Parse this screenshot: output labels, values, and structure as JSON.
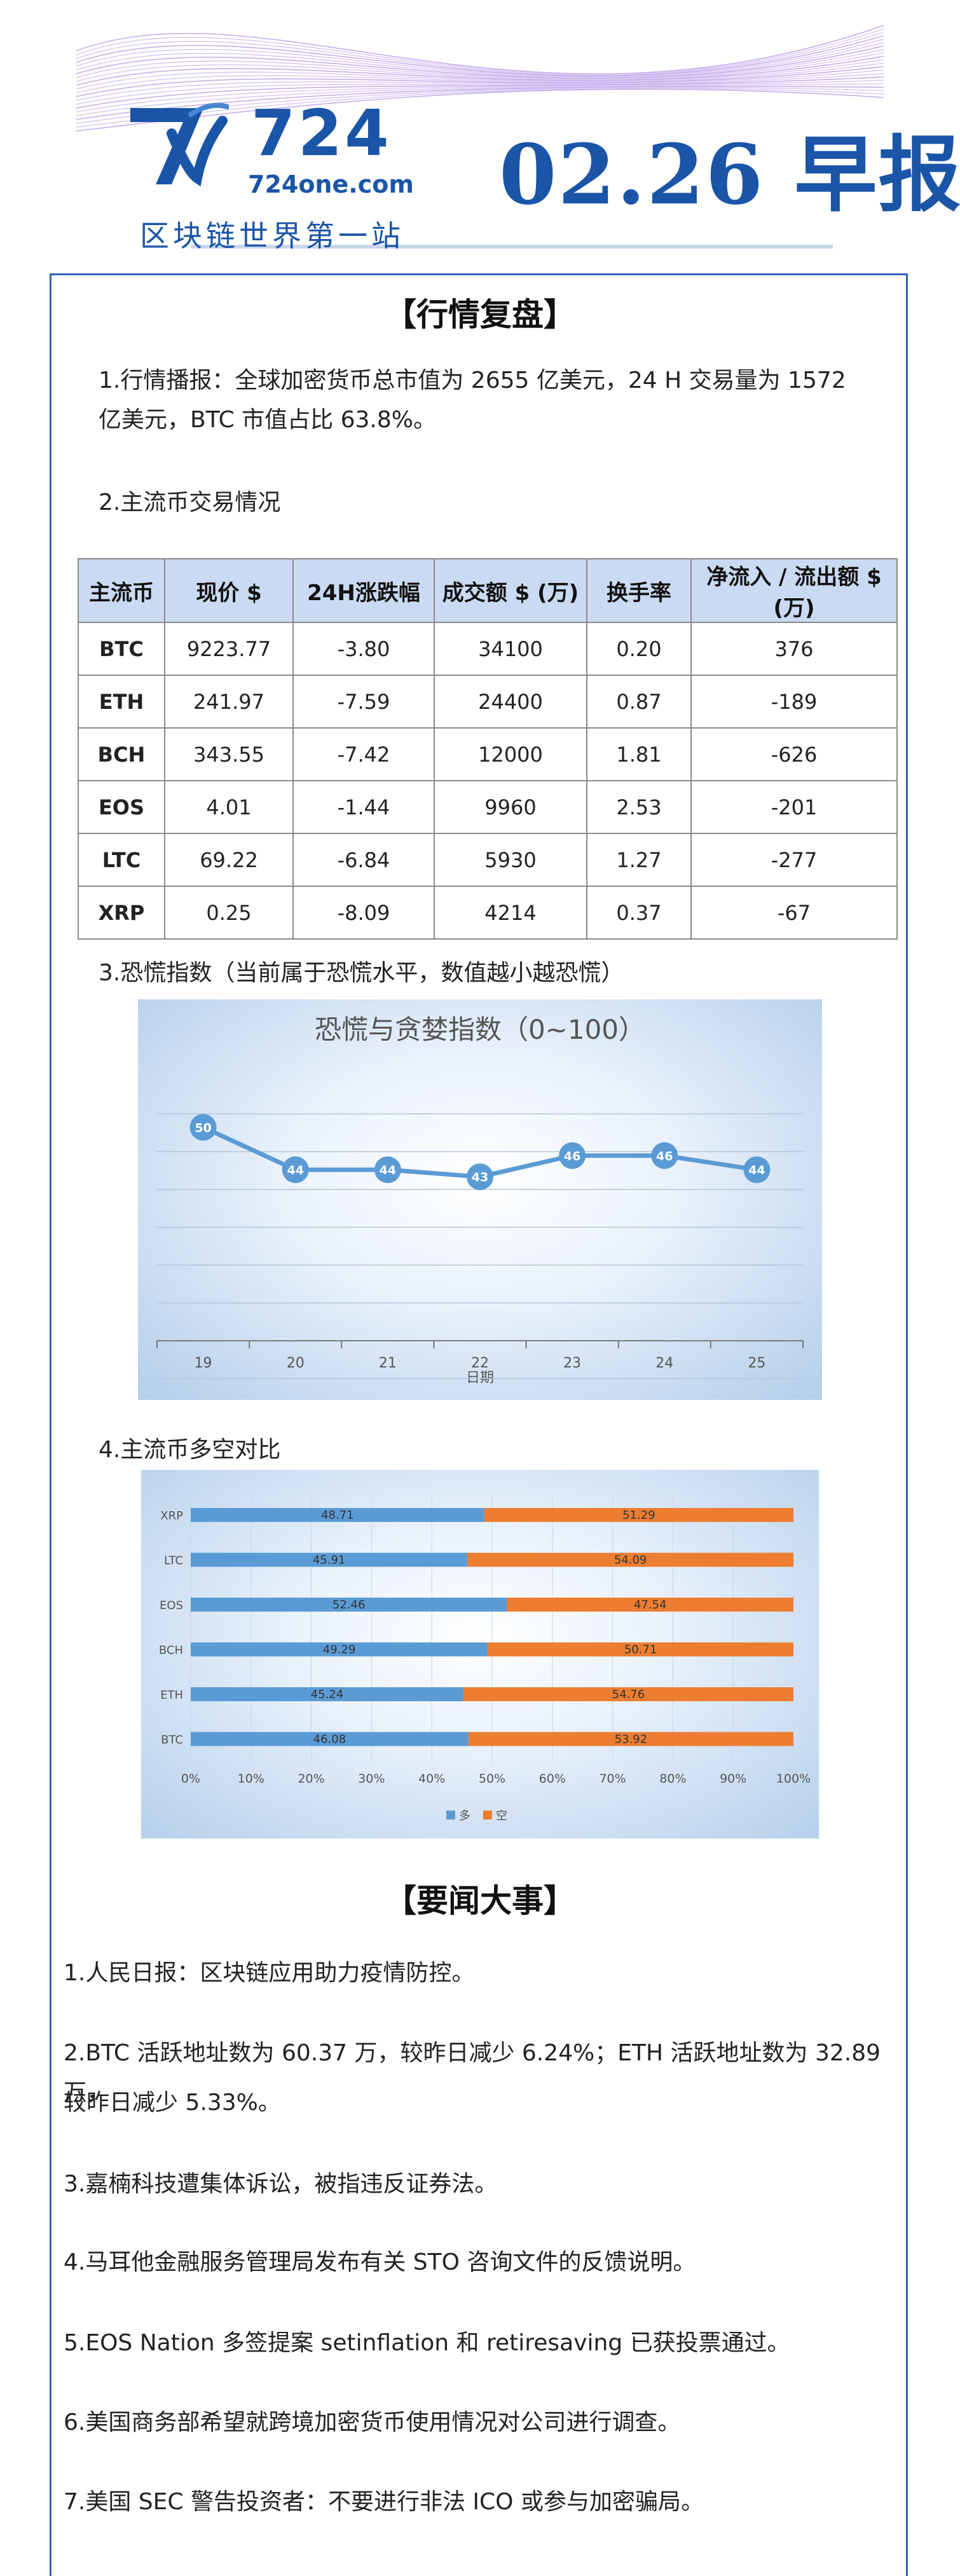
{
  "header": {
    "logo_number": "724",
    "logo_url": "724one.com",
    "slogan": "区块链世界第一站",
    "report_title": "02.26 早报",
    "colors": {
      "brand_blue": "#1a55a8",
      "wave_purple": "#9b7fd6"
    },
    "logo_icon": "7w-logo-icon"
  },
  "market": {
    "title": "【行情复盘】",
    "p1": "1.行情播报：全球加密货币总市值为 2655 亿美元，24 H 交易量为 1572 亿美元，BTC 市值占比  63.8%。",
    "p2": "2.主流币交易情况",
    "table": {
      "headers": [
        "主流币",
        "现价 $",
        "24H涨跌幅",
        "成交额 $ (万)",
        "换手率",
        "净流入 / 流出额 $ (万)"
      ],
      "rows": [
        [
          "BTC",
          "9223.77",
          "-3.80",
          "34100",
          "0.20",
          "376"
        ],
        [
          "ETH",
          "241.97",
          "-7.59",
          "24400",
          "0.87",
          "-189"
        ],
        [
          "BCH",
          "343.55",
          "-7.42",
          "12000",
          "1.81",
          "-626"
        ],
        [
          "EOS",
          "4.01",
          "-1.44",
          "9960",
          "2.53",
          "-201"
        ],
        [
          "LTC",
          "69.22",
          "-6.84",
          "5930",
          "1.27",
          "-277"
        ],
        [
          "XRP",
          "0.25",
          "-8.09",
          "4214",
          "0.37",
          "-67"
        ]
      ]
    },
    "p3": "3.恐慌指数（当前属于恐慌水平，数值越小越恐慌）",
    "p4": "4.主流币多空对比"
  },
  "chart_data": [
    {
      "type": "line",
      "title": "恐慌与贪婪指数（0~100）",
      "xlabel": "日期",
      "ylabel": "",
      "x": [
        "19",
        "20",
        "21",
        "22",
        "23",
        "24",
        "25"
      ],
      "series": [
        {
          "values": [
            50,
            44,
            44,
            43,
            46,
            46,
            44
          ]
        }
      ],
      "ylim": [
        20,
        60
      ],
      "grid": true,
      "colors": {
        "line": "#5b9bd5",
        "label_text": "#ffffff"
      }
    },
    {
      "type": "bar",
      "orientation": "horizontal",
      "stacked": "percent",
      "categories": [
        "BTC",
        "ETH",
        "BCH",
        "EOS",
        "LTC",
        "XRP"
      ],
      "series": [
        {
          "name": "多",
          "values": [
            46.08,
            45.24,
            49.29,
            52.46,
            45.91,
            48.71
          ],
          "color": "#5b9bd5"
        },
        {
          "name": "空",
          "values": [
            53.92,
            54.76,
            50.71,
            47.54,
            54.09,
            51.29
          ],
          "color": "#ed7d31"
        }
      ],
      "xticks": [
        "0%",
        "10%",
        "20%",
        "30%",
        "40%",
        "50%",
        "60%",
        "70%",
        "80%",
        "90%",
        "100%"
      ],
      "xlim": [
        0,
        100
      ],
      "legend": "bottom"
    }
  ],
  "news": {
    "title": "【要闻大事】",
    "items": [
      "1.人民日报：区块链应用助力疫情防控。",
      "2.BTC 活跃地址数为 60.37 万，较昨日减少 6.24%；ETH 活跃地址数为 32.89 万，",
      "较昨日减少 5.33%。",
      "3.嘉楠科技遭集体诉讼，被指违反证券法。",
      "4.马耳他金融服务管理局发布有关 STO 咨询文件的反馈说明。",
      "5.EOS Nation 多签提案 setinflation 和 retiresaving 已获投票通过。",
      "6.美国商务部希望就跨境加密货币使用情况对公司进行调查。",
      "7.美国 SEC 警告投资者：不要进行非法 ICO 或参与加密骗局。"
    ]
  }
}
